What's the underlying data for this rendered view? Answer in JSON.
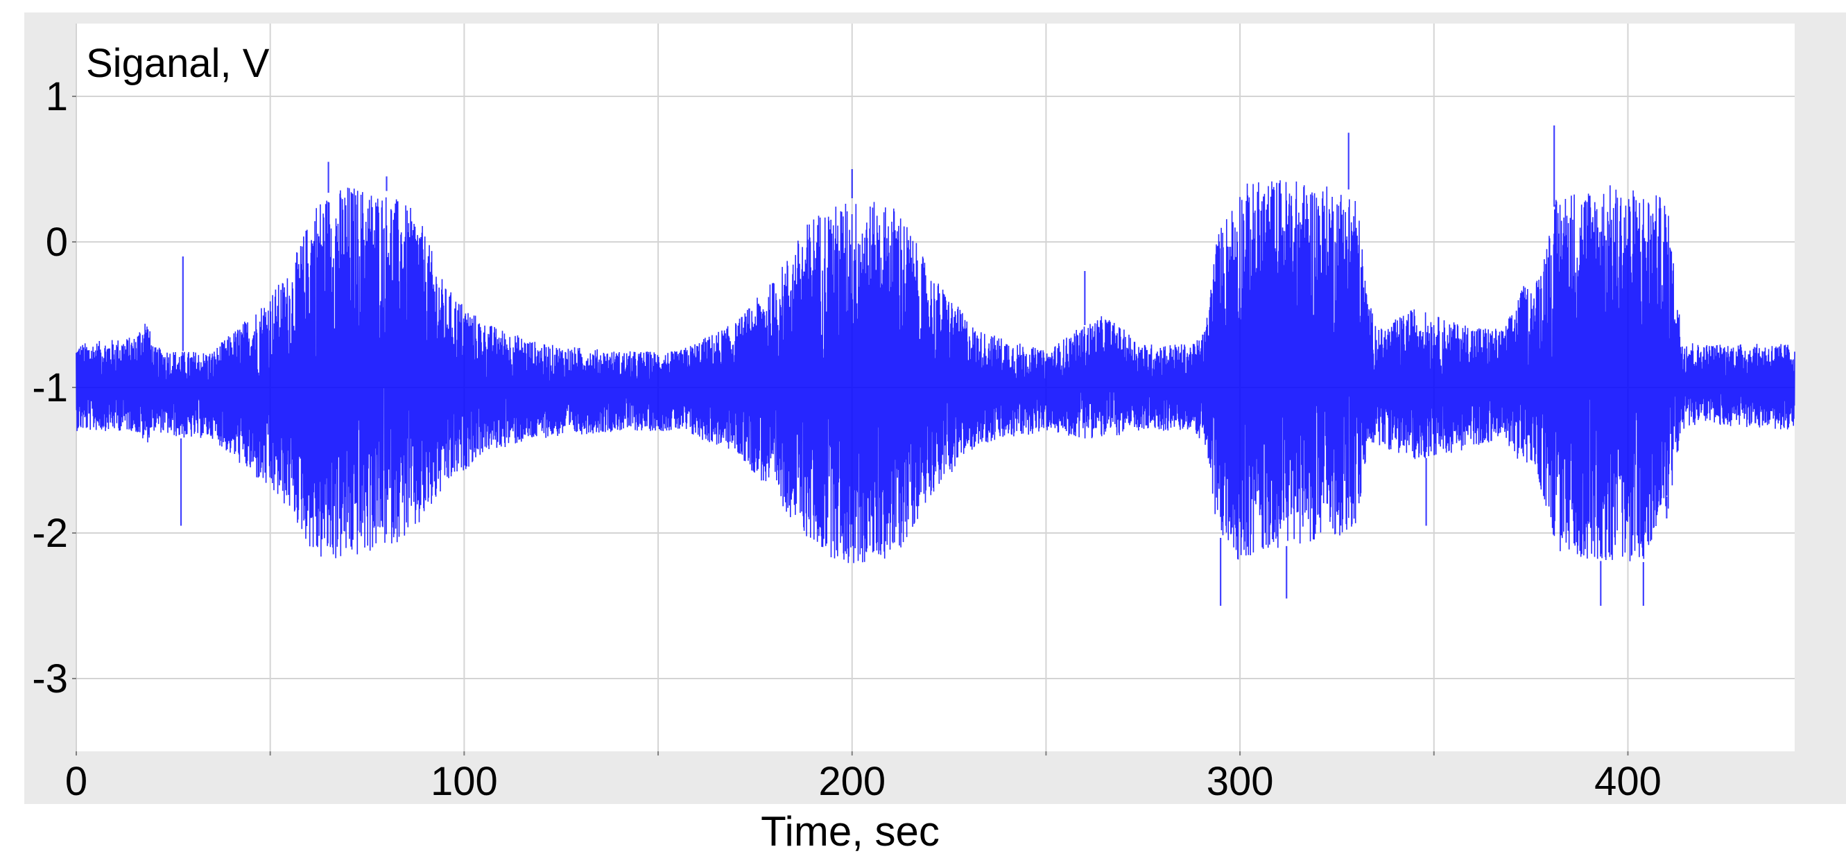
{
  "chart_data": {
    "type": "line",
    "title": "",
    "ylabel": "Siganal, V",
    "xlabel": "Time, sec",
    "xlim": [
      0,
      443
    ],
    "ylim": [
      -3.5,
      1.5
    ],
    "xticks": [
      0,
      100,
      200,
      300,
      400
    ],
    "xtick_labels": [
      "0",
      "100",
      "200",
      "300",
      "400"
    ],
    "xgrid": [
      0,
      50,
      100,
      150,
      200,
      250,
      300,
      350,
      400
    ],
    "yticks": [
      1,
      0,
      -1,
      -2,
      -3
    ],
    "ytick_labels": [
      "1",
      "0",
      "-1",
      "-2",
      "-3"
    ],
    "grid": true,
    "legend": "none",
    "series": [
      {
        "color": "#0000ff",
        "baseline": -1.0,
        "envelope": {
          "time": [
            0,
            15,
            18,
            20,
            27,
            35,
            45,
            55,
            62,
            70,
            80,
            88,
            95,
            105,
            120,
            140,
            155,
            170,
            180,
            190,
            200,
            212,
            220,
            232,
            250,
            258,
            265,
            275,
            288,
            291,
            294,
            300,
            310,
            320,
            330,
            333,
            336,
            345,
            355,
            368,
            373,
            376,
            382,
            395,
            405,
            410,
            414,
            418,
            443
          ],
          "upper": [
            -0.7,
            -0.65,
            -0.5,
            -0.72,
            -0.75,
            -0.75,
            -0.5,
            -0.2,
            0.3,
            0.4,
            0.35,
            0.2,
            -0.3,
            -0.55,
            -0.7,
            -0.75,
            -0.75,
            -0.55,
            -0.25,
            0.2,
            0.3,
            0.25,
            -0.2,
            -0.6,
            -0.75,
            -0.6,
            -0.5,
            -0.7,
            -0.7,
            -0.6,
            0.05,
            0.4,
            0.45,
            0.4,
            0.35,
            -0.4,
            -0.6,
            -0.45,
            -0.55,
            -0.6,
            -0.3,
            -0.3,
            0.35,
            0.4,
            0.35,
            0.3,
            -0.65,
            -0.7,
            -0.7
          ],
          "lower": [
            -1.3,
            -1.3,
            -1.4,
            -1.3,
            -1.35,
            -1.35,
            -1.6,
            -1.85,
            -2.2,
            -2.2,
            -2.1,
            -2.0,
            -1.7,
            -1.45,
            -1.35,
            -1.3,
            -1.3,
            -1.45,
            -1.75,
            -2.1,
            -2.25,
            -2.15,
            -1.75,
            -1.4,
            -1.3,
            -1.35,
            -1.35,
            -1.3,
            -1.3,
            -1.4,
            -2.0,
            -2.2,
            -2.1,
            -2.05,
            -2.0,
            -1.4,
            -1.4,
            -1.5,
            -1.45,
            -1.35,
            -1.55,
            -1.55,
            -2.15,
            -2.2,
            -2.2,
            -1.9,
            -1.3,
            -1.25,
            -1.3
          ]
        },
        "spikes": [
          {
            "t": 18,
            "v": -0.5
          },
          {
            "t": 27,
            "v": -1.95
          },
          {
            "t": 27.5,
            "v": -0.1
          },
          {
            "t": 65,
            "v": 0.55
          },
          {
            "t": 80,
            "v": 0.45
          },
          {
            "t": 200,
            "v": 0.5
          },
          {
            "t": 260,
            "v": -0.2
          },
          {
            "t": 295,
            "v": -2.5
          },
          {
            "t": 312,
            "v": -2.45
          },
          {
            "t": 328,
            "v": 0.75
          },
          {
            "t": 348,
            "v": -1.95
          },
          {
            "t": 381,
            "v": 0.8
          },
          {
            "t": 393,
            "v": -2.5
          },
          {
            "t": 404,
            "v": -2.5
          },
          {
            "t": 410,
            "v": -1.75
          }
        ]
      }
    ]
  }
}
